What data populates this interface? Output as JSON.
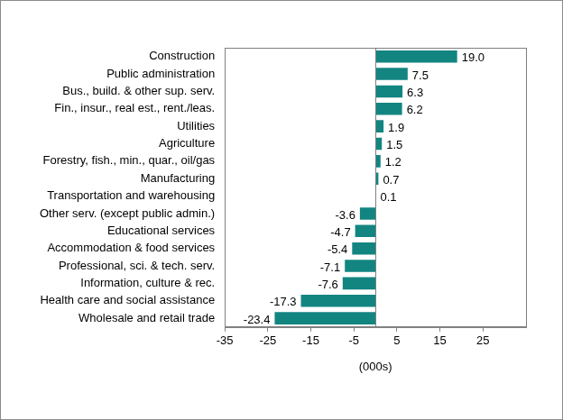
{
  "chart_data": {
    "type": "bar",
    "orientation": "horizontal",
    "categories": [
      "Construction",
      "Public administration",
      "Bus., build. & other sup. serv.",
      "Fin., insur., real est., rent./leas.",
      "Utilities",
      "Agriculture",
      "Forestry, fish., min., quar., oil/gas",
      "Manufacturing",
      "Transportation and warehousing",
      "Other serv. (except public admin.)",
      "Educational services",
      "Accommodation & food services",
      "Professional, sci. & tech. serv.",
      "Information, culture & rec.",
      "Health care and social assistance",
      "Wholesale and retail trade"
    ],
    "values": [
      19.0,
      7.5,
      6.3,
      6.2,
      1.9,
      1.5,
      1.2,
      0.7,
      0.1,
      -3.6,
      -4.7,
      -5.4,
      -7.1,
      -7.6,
      -17.3,
      -23.4
    ],
    "value_labels": [
      "19.0",
      "7.5",
      "6.3",
      "6.2",
      "1.9",
      "1.5",
      "1.2",
      "0.7",
      "0.1",
      "-3.6",
      "-4.7",
      "-5.4",
      "-7.1",
      "-7.6",
      "-17.3",
      "-23.4"
    ],
    "color": "#138581",
    "x_label": "(000s)",
    "xlim": [
      -35,
      35
    ],
    "xticks": [
      -35,
      -25,
      -15,
      -5,
      5,
      15,
      25
    ],
    "grid": false,
    "data_labels": true
  }
}
